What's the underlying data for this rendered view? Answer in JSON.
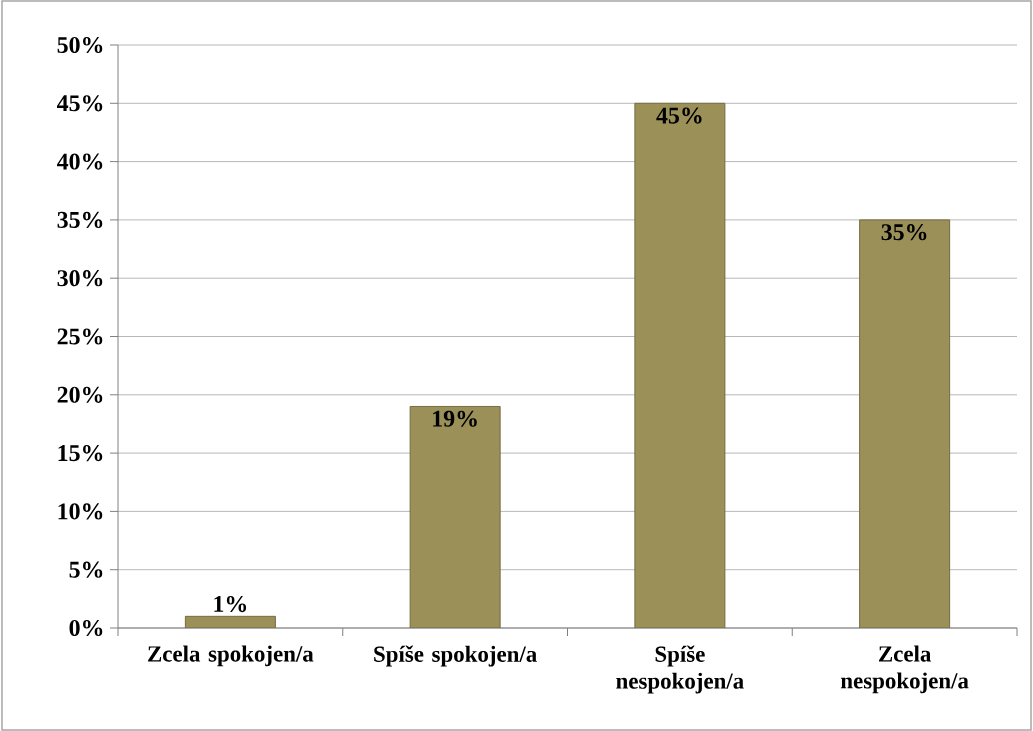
{
  "chart_data": {
    "type": "bar",
    "categories": [
      "Zcela spokojen/a",
      "Spíše spokojen/a",
      "Spíše nespokojen/a",
      "Zcela nespokojen/a"
    ],
    "values": [
      1,
      19,
      45,
      35
    ],
    "value_labels": [
      "1%",
      "19%",
      "45%",
      "35%"
    ],
    "color": "#9b9058",
    "ylim": [
      0,
      50
    ],
    "yticks": [
      {
        "value": 0,
        "label": "0%"
      },
      {
        "value": 5,
        "label": "5%"
      },
      {
        "value": 10,
        "label": "10%"
      },
      {
        "value": 15,
        "label": "15%"
      },
      {
        "value": 20,
        "label": "20%"
      },
      {
        "value": 25,
        "label": "25%"
      },
      {
        "value": 30,
        "label": "30%"
      },
      {
        "value": 35,
        "label": "35%"
      },
      {
        "value": 40,
        "label": "40%"
      },
      {
        "value": 45,
        "label": "45%"
      },
      {
        "value": 50,
        "label": "50%"
      }
    ],
    "grid": "y"
  }
}
